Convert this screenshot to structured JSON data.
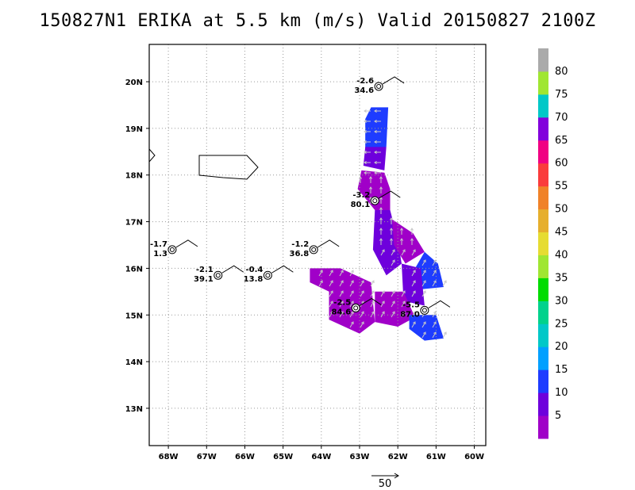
{
  "chart_data": {
    "type": "heatmap",
    "title": "150827N1 ERIKA at 5.5 km (m/s) Valid 20150827  2100Z",
    "xlim": [
      -68.5,
      -59.7
    ],
    "ylim": [
      12.2,
      20.8
    ],
    "x_ticks": [
      {
        "v": -68,
        "label": "68W"
      },
      {
        "v": -67,
        "label": "67W"
      },
      {
        "v": -66,
        "label": "66W"
      },
      {
        "v": -65,
        "label": "65W"
      },
      {
        "v": -64,
        "label": "64W"
      },
      {
        "v": -63,
        "label": "63W"
      },
      {
        "v": -62,
        "label": "62W"
      },
      {
        "v": -61,
        "label": "61W"
      },
      {
        "v": -60,
        "label": "60W"
      }
    ],
    "y_ticks": [
      {
        "v": 13,
        "label": "13N"
      },
      {
        "v": 14,
        "label": "14N"
      },
      {
        "v": 15,
        "label": "15N"
      },
      {
        "v": 16,
        "label": "16N"
      },
      {
        "v": 17,
        "label": "17N"
      },
      {
        "v": 18,
        "label": "18N"
      },
      {
        "v": 19,
        "label": "19N"
      },
      {
        "v": 20,
        "label": "20N"
      }
    ],
    "grid": true,
    "colorbar": {
      "levels": [
        5,
        10,
        15,
        20,
        25,
        30,
        35,
        40,
        45,
        50,
        55,
        60,
        65,
        70,
        75,
        80
      ],
      "colors": [
        "#a000c8",
        "#6e00dc",
        "#1e3cff",
        "#00a0ff",
        "#00c8c8",
        "#00d28c",
        "#00dc00",
        "#a0e632",
        "#e6dc32",
        "#e6af2d",
        "#f08228",
        "#fa3c3c",
        "#f00082",
        "#8200dc",
        "#00c8c8",
        "#a0e632",
        "#aaaaaa"
      ]
    },
    "wind_regions": [
      {
        "level": 15,
        "polygon": [
          [
            -62.7,
            19.45
          ],
          [
            -62.25,
            19.45
          ],
          [
            -62.3,
            18.6
          ],
          [
            -62.85,
            18.55
          ],
          [
            -62.85,
            19.2
          ]
        ]
      },
      {
        "level": 10,
        "polygon": [
          [
            -62.85,
            18.6
          ],
          [
            -62.3,
            18.6
          ],
          [
            -62.35,
            18.1
          ],
          [
            -62.9,
            18.2
          ]
        ]
      },
      {
        "level": 5,
        "polygon": [
          [
            -62.95,
            18.1
          ],
          [
            -62.35,
            18.05
          ],
          [
            -62.2,
            17.7
          ],
          [
            -62.2,
            17.2
          ],
          [
            -62.6,
            17.25
          ],
          [
            -63.05,
            17.7
          ]
        ]
      },
      {
        "level": 10,
        "polygon": [
          [
            -62.6,
            17.25
          ],
          [
            -62.2,
            17.25
          ],
          [
            -62.0,
            16.6
          ],
          [
            -61.9,
            16.1
          ],
          [
            -62.3,
            15.85
          ],
          [
            -62.65,
            16.4
          ]
        ]
      },
      {
        "level": 5,
        "polygon": [
          [
            -62.15,
            17.05
          ],
          [
            -61.6,
            16.75
          ],
          [
            -61.3,
            16.35
          ],
          [
            -61.8,
            16.1
          ],
          [
            -62.1,
            16.5
          ]
        ]
      },
      {
        "level": 15,
        "polygon": [
          [
            -61.3,
            16.35
          ],
          [
            -60.95,
            16.1
          ],
          [
            -60.8,
            15.6
          ],
          [
            -61.4,
            15.55
          ],
          [
            -61.55,
            16.0
          ]
        ]
      },
      {
        "level": 10,
        "polygon": [
          [
            -61.9,
            16.1
          ],
          [
            -61.4,
            16.0
          ],
          [
            -61.3,
            15.2
          ],
          [
            -61.85,
            15.3
          ]
        ]
      },
      {
        "level": 5,
        "polygon": [
          [
            -62.6,
            15.5
          ],
          [
            -61.85,
            15.5
          ],
          [
            -61.55,
            14.95
          ],
          [
            -62.0,
            14.75
          ],
          [
            -62.6,
            14.85
          ]
        ]
      },
      {
        "level": 5,
        "polygon": [
          [
            -64.3,
            16.0
          ],
          [
            -63.5,
            16.0
          ],
          [
            -62.7,
            15.7
          ],
          [
            -62.6,
            14.85
          ],
          [
            -63.0,
            14.6
          ],
          [
            -63.8,
            14.9
          ],
          [
            -63.8,
            15.5
          ],
          [
            -64.3,
            15.7
          ]
        ]
      },
      {
        "level": 15,
        "polygon": [
          [
            -61.7,
            15.0
          ],
          [
            -61.0,
            15.0
          ],
          [
            -60.8,
            14.5
          ],
          [
            -61.3,
            14.45
          ],
          [
            -61.7,
            14.7
          ]
        ]
      }
    ],
    "storms": [
      {
        "lon": -62.5,
        "lat": 19.9,
        "top": "-2.6",
        "bottom": "34.6"
      },
      {
        "lon": -62.6,
        "lat": 17.45,
        "top": "-3.2",
        "bottom": "80.1"
      },
      {
        "lon": -67.9,
        "lat": 16.4,
        "top": "-1.7",
        "bottom": "1.3"
      },
      {
        "lon": -64.2,
        "lat": 16.4,
        "top": "-1.2",
        "bottom": "36.8"
      },
      {
        "lon": -66.7,
        "lat": 15.85,
        "top": "-2.1",
        "bottom": "39.1"
      },
      {
        "lon": -65.4,
        "lat": 15.85,
        "top": "-0.4",
        "bottom": "13.8"
      },
      {
        "lon": -63.1,
        "lat": 15.15,
        "top": "-2.5",
        "bottom": "84.6"
      },
      {
        "lon": -61.3,
        "lat": 15.1,
        "top": "-5.5",
        "bottom": "87.0"
      }
    ],
    "reference_vector_label": "50"
  }
}
